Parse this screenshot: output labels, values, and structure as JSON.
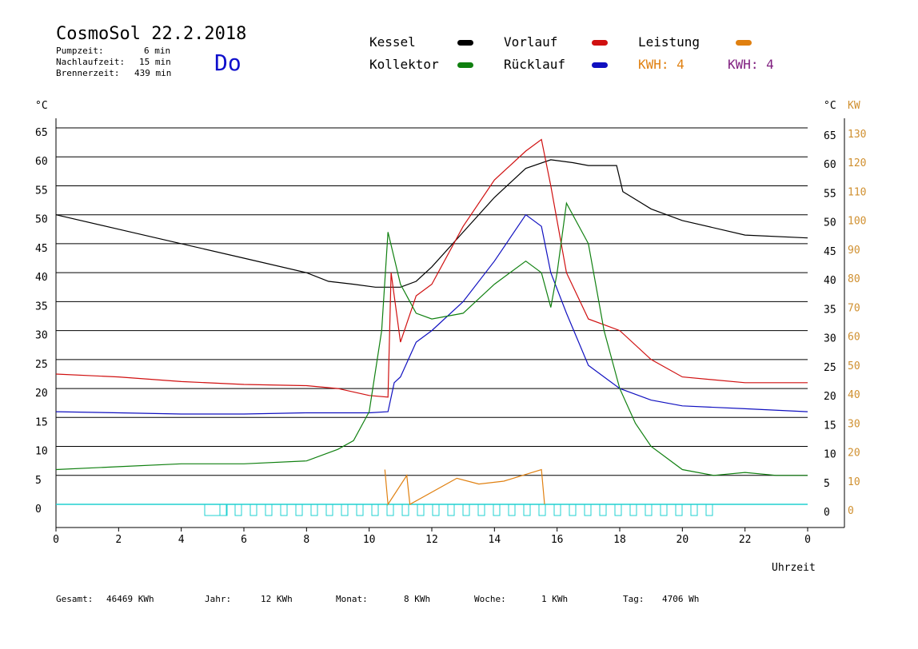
{
  "header": {
    "title": "CosmoSol 22.2.2018",
    "pump_label": "Pumpzeit:",
    "pump_value": "6 min",
    "nach_label": "Nachlaufzeit:",
    "nach_value": "15 min",
    "brenner_label": "Brennerzeit:",
    "brenner_value": "439 min",
    "day": "Do"
  },
  "legend": {
    "kessel": "Kessel",
    "vorlauf": "Vorlauf",
    "leistung": "Leistung",
    "kollektor": "Kollektor",
    "ruecklauf": "Rücklauf",
    "kwh1": "KWH: 4",
    "kwh2": "KWH: 4"
  },
  "colors": {
    "kessel": "#000000",
    "vorlauf": "#d01010",
    "ruecklauf": "#1010c0",
    "kollektor": "#108010",
    "leistung": "#e08010",
    "kwh2": "#802080",
    "baseline": "#20d0d0",
    "right_kw_axis": "#d09030"
  },
  "footer": {
    "gesamt_label": "Gesamt:",
    "gesamt_value": "46469 KWh",
    "jahr_label": "Jahr:",
    "jahr_value": "12 KWh",
    "monat_label": "Monat:",
    "monat_value": "8 KWh",
    "woche_label": "Woche:",
    "woche_value": "1 KWh",
    "tag_label": "Tag:",
    "tag_value": "4706 Wh"
  },
  "chart_data": {
    "type": "line",
    "xlabel": "Uhrzeit",
    "ylabel_left": "°C",
    "ylabel_right": "°C",
    "ylabel_right2": "KW",
    "xlim": [
      0,
      24
    ],
    "ylim": [
      0,
      65
    ],
    "x_ticks": [
      "0",
      "2",
      "4",
      "6",
      "8",
      "10",
      "12",
      "14",
      "16",
      "18",
      "20",
      "22",
      "0"
    ],
    "y_ticks": [
      "0",
      "5",
      "10",
      "15",
      "20",
      "25",
      "30",
      "35",
      "40",
      "45",
      "50",
      "55",
      "60",
      "65"
    ],
    "y2_ticks": [
      "0",
      "10",
      "20",
      "30",
      "40",
      "50",
      "60",
      "70",
      "80",
      "90",
      "100",
      "110",
      "120",
      "130"
    ],
    "grid": true,
    "series": [
      {
        "name": "Kessel",
        "color": "#000000",
        "x": [
          0,
          2,
          4,
          6,
          8,
          8.7,
          9.5,
          10.2,
          10.6,
          11,
          11.5,
          12,
          13,
          14,
          15,
          15.8,
          16.5,
          17,
          17.9,
          18.1,
          19,
          20,
          22,
          24
        ],
        "y": [
          50,
          47.5,
          45,
          42.5,
          40,
          38.5,
          38,
          37.5,
          37.5,
          37.5,
          38.5,
          41,
          47,
          53,
          58,
          59.5,
          59,
          58.5,
          58.5,
          54,
          51,
          49,
          46.5,
          46
        ]
      },
      {
        "name": "Vorlauf",
        "color": "#d01010",
        "x": [
          0,
          2,
          4,
          6,
          8,
          9,
          10,
          10.6,
          10.7,
          11,
          11.5,
          12,
          13,
          14,
          15,
          15.5,
          15.8,
          16.3,
          17,
          18,
          19,
          20,
          22,
          24
        ],
        "y": [
          22.5,
          22,
          21.2,
          20.7,
          20.5,
          20,
          18.8,
          18.5,
          40,
          28,
          36,
          38,
          48,
          56,
          61,
          63,
          55,
          40,
          32,
          30,
          25,
          22,
          21,
          21
        ]
      },
      {
        "name": "Rücklauf",
        "color": "#1010c0",
        "x": [
          0,
          2,
          4,
          6,
          8,
          10,
          10.6,
          10.8,
          11,
          11.5,
          12,
          13,
          14,
          15,
          15.5,
          15.8,
          16.3,
          17,
          18,
          19,
          20,
          22,
          24
        ],
        "y": [
          16,
          15.8,
          15.6,
          15.6,
          15.8,
          15.8,
          16,
          21,
          22,
          28,
          30,
          35,
          42,
          50,
          48,
          40,
          33,
          24,
          20,
          18,
          17,
          16.5,
          16
        ]
      },
      {
        "name": "Kollektor",
        "color": "#108010",
        "x": [
          0,
          2,
          4,
          6,
          8,
          9,
          9.5,
          10,
          10.4,
          10.6,
          11,
          11.5,
          12,
          13,
          14,
          15,
          15.5,
          15.8,
          16,
          16.3,
          17,
          17.5,
          18,
          18.5,
          19,
          20,
          21,
          22,
          23,
          24
        ],
        "y": [
          6,
          6.5,
          7,
          7,
          7.5,
          9.5,
          11,
          16,
          30,
          47,
          38,
          33,
          32,
          33,
          38,
          42,
          40,
          34,
          40,
          52,
          45,
          30,
          20,
          14,
          10,
          6,
          5,
          5.5,
          5,
          5
        ]
      },
      {
        "name": "Leistung",
        "color": "#e08010",
        "x": [
          10.5,
          10.6,
          11.2,
          11.3,
          12.8,
          13.5,
          14.3,
          15.5,
          15.6
        ],
        "y": [
          6,
          0,
          5,
          0,
          4.5,
          3.5,
          4,
          6,
          0
        ]
      }
    ]
  }
}
